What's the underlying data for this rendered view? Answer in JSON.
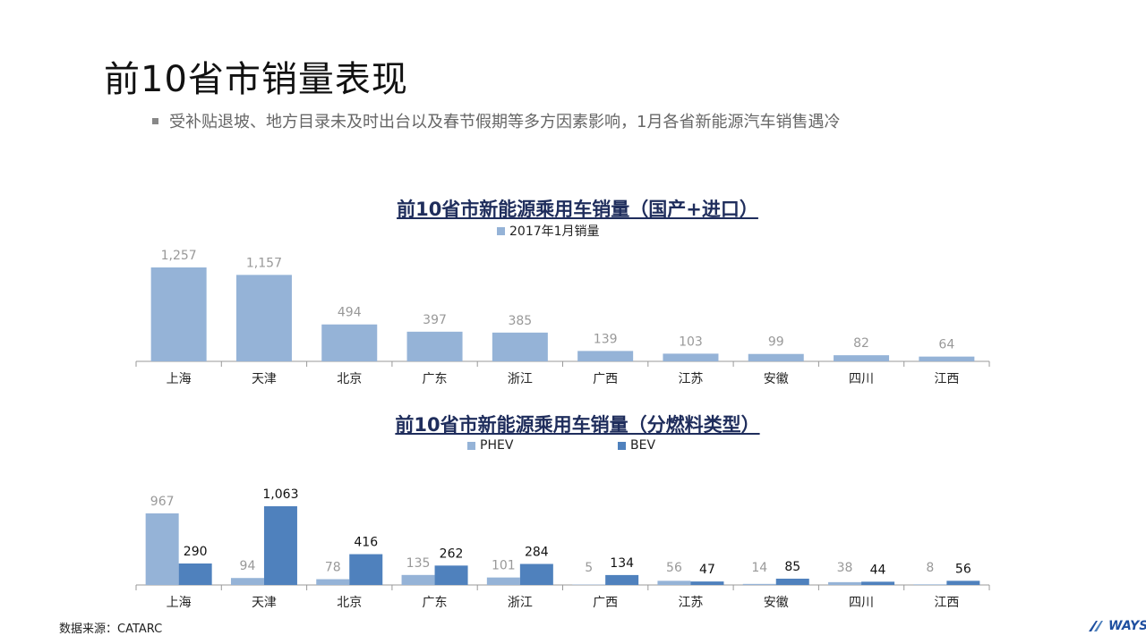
{
  "page": {
    "title": "前10省市销量表现",
    "bullet": "受补贴退坡、地方目录未及时出台以及春节假期等多方因素影响，1月各省新能源汽车销售遇冷",
    "source": "数据来源：CATARC",
    "logo": "WAYS"
  },
  "colors": {
    "light_blue": "#95b3d7",
    "dark_blue": "#4f81bd",
    "title_navy": "#1f2d5c"
  },
  "chart_data": [
    {
      "type": "bar",
      "title": "前10省市新能源乘用车销量（国产+进口）",
      "categories": [
        "上海",
        "天津",
        "北京",
        "广东",
        "浙江",
        "广西",
        "江苏",
        "安徽",
        "四川",
        "江西"
      ],
      "series": [
        {
          "name": "2017年1月销量",
          "values": [
            1257,
            1157,
            494,
            397,
            385,
            139,
            103,
            99,
            82,
            64
          ]
        }
      ],
      "value_labels": [
        "1,257",
        "1,157",
        "494",
        "397",
        "385",
        "139",
        "103",
        "99",
        "82",
        "64"
      ],
      "ylim": [
        0,
        1257
      ],
      "legend": "top-center",
      "grid": false
    },
    {
      "type": "bar",
      "title": "前10省市新能源乘用车销量（分燃料类型）",
      "categories": [
        "上海",
        "天津",
        "北京",
        "广东",
        "浙江",
        "广西",
        "江苏",
        "安徽",
        "四川",
        "江西"
      ],
      "series": [
        {
          "name": "PHEV",
          "values": [
            967,
            94,
            78,
            135,
            101,
            5,
            56,
            14,
            38,
            8
          ]
        },
        {
          "name": "BEV",
          "values": [
            290,
            1063,
            416,
            262,
            284,
            134,
            47,
            85,
            44,
            56
          ]
        }
      ],
      "value_labels": {
        "PHEV": [
          "967",
          "94",
          "78",
          "135",
          "101",
          "5",
          "56",
          "14",
          "38",
          "8"
        ],
        "BEV": [
          "290",
          "1,063",
          "416",
          "262",
          "284",
          "134",
          "47",
          "85",
          "44",
          "56"
        ]
      },
      "ylim": [
        0,
        1063
      ],
      "legend": "top-center",
      "grid": false
    }
  ]
}
